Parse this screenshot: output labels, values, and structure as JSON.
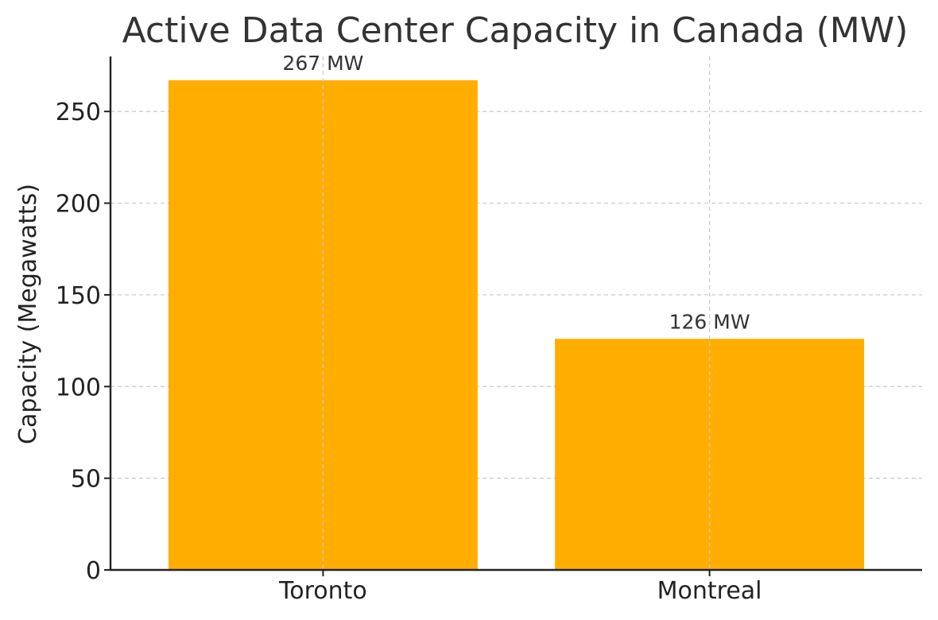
{
  "chart_data": {
    "type": "bar",
    "title": "Active Data Center Capacity in Canada (MW)",
    "xlabel": "",
    "ylabel": "Capacity (Megawatts)",
    "categories": [
      "Toronto",
      "Montreal"
    ],
    "values": [
      267,
      126
    ],
    "data_labels": [
      "267 MW",
      "126 MW"
    ],
    "ylim": [
      0,
      280
    ],
    "yticks": [
      0,
      50,
      100,
      150,
      200,
      250
    ],
    "grid": true,
    "bar_color": "#FFAE00"
  }
}
